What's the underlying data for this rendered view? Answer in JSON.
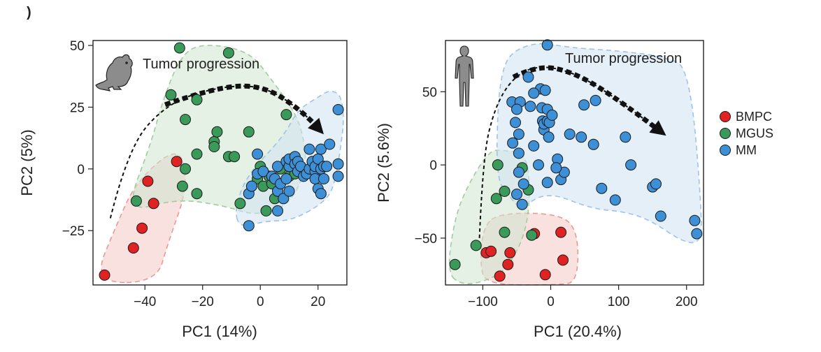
{
  "panel_marker": ")",
  "colors": {
    "BMPC": "#e02222",
    "MGUS": "#3a9a5a",
    "MM": "#3d8fd6",
    "hull_BMPC": "#f4c9c6",
    "hull_MGUS": "#cfe6cf",
    "hull_MM": "#cfe2f3",
    "hull_edge_BMPC": "#e89a95",
    "hull_edge_MGUS": "#9fcd9f",
    "hull_edge_MM": "#9cc4e6",
    "arrow": "#111111"
  },
  "icons": {
    "mouse": "mouse-icon",
    "human": "human-silhouette-icon"
  },
  "chart_data": [
    {
      "type": "scatter",
      "title": "",
      "annotation": "Tumor progression",
      "xlabel": "PC1 (14%)",
      "ylabel": "PC2 (5%)",
      "xlim": [
        -58,
        30
      ],
      "ylim": [
        -47,
        52
      ],
      "xticks": [
        -40,
        -20,
        0,
        20
      ],
      "xtick_labels": [
        "−40",
        "−20",
        "0",
        "20"
      ],
      "yticks": [
        -25,
        0,
        25,
        50
      ],
      "ytick_labels": [
        "−25",
        "0",
        "25",
        "50"
      ],
      "series": [
        {
          "name": "BMPC",
          "points": [
            [
              -54,
              -43
            ],
            [
              -44,
              -32
            ],
            [
              -41,
              -24
            ],
            [
              -39,
              -5
            ],
            [
              -37,
              -14
            ],
            [
              -29,
              3
            ]
          ]
        },
        {
          "name": "MGUS",
          "points": [
            [
              -43,
              -13
            ],
            [
              -28,
              49
            ],
            [
              -31,
              30
            ],
            [
              -26,
              20
            ],
            [
              -22,
              28
            ],
            [
              -26,
              0
            ],
            [
              -27,
              -7
            ],
            [
              -22,
              -10
            ],
            [
              -22,
              6
            ],
            [
              -16,
              11
            ],
            [
              -15,
              15
            ],
            [
              -16,
              9
            ],
            [
              -11,
              47
            ],
            [
              -11,
              5
            ],
            [
              -9,
              5
            ],
            [
              -4,
              15
            ],
            [
              -7,
              -14
            ],
            [
              -3,
              -7
            ],
            [
              -1,
              -4
            ],
            [
              0,
              1
            ],
            [
              1,
              -7
            ],
            [
              3,
              -3
            ],
            [
              2,
              -17
            ],
            [
              4,
              -6
            ],
            [
              5,
              -12
            ],
            [
              7,
              0
            ],
            [
              9,
              22
            ],
            [
              10,
              -3
            ],
            [
              12,
              -2
            ]
          ]
        },
        {
          "name": "MM",
          "points": [
            [
              -4,
              -23
            ],
            [
              -4,
              -10
            ],
            [
              -3,
              -7
            ],
            [
              -1,
              -2
            ],
            [
              -1,
              6
            ],
            [
              1,
              -1
            ],
            [
              4,
              -3
            ],
            [
              5,
              -4
            ],
            [
              6,
              -17
            ],
            [
              6,
              -9
            ],
            [
              6,
              1
            ],
            [
              7,
              -6
            ],
            [
              9,
              -4
            ],
            [
              9,
              3
            ],
            [
              8,
              -12
            ],
            [
              10,
              1
            ],
            [
              10,
              4
            ],
            [
              10,
              -9
            ],
            [
              12,
              5
            ],
            [
              12,
              2
            ],
            [
              13,
              3
            ],
            [
              13,
              -1
            ],
            [
              14,
              1
            ],
            [
              15,
              -3
            ],
            [
              16,
              -2
            ],
            [
              17,
              0
            ],
            [
              17,
              8
            ],
            [
              18,
              3
            ],
            [
              19,
              -1
            ],
            [
              19,
              1
            ],
            [
              19,
              -4
            ],
            [
              20,
              -8
            ],
            [
              21,
              -10
            ],
            [
              21,
              0
            ],
            [
              20,
              4
            ],
            [
              21,
              8
            ],
            [
              22,
              1
            ],
            [
              23,
              1
            ],
            [
              22,
              -4
            ],
            [
              24,
              10
            ],
            [
              27,
              -3
            ],
            [
              27,
              2
            ],
            [
              27,
              24
            ]
          ]
        }
      ],
      "hulls": {
        "BMPC": [
          [
            -58,
            -46
          ],
          [
            -50,
            -23
          ],
          [
            -43,
            -5
          ],
          [
            -28,
            10
          ],
          [
            -25,
            -7
          ],
          [
            -32,
            -30
          ],
          [
            -36,
            -46
          ]
        ],
        "MGUS": [
          [
            -47,
            -18
          ],
          [
            -38,
            10
          ],
          [
            -34,
            27
          ],
          [
            -28,
            45
          ],
          [
            -21,
            51
          ],
          [
            -4,
            48
          ],
          [
            4,
            36
          ],
          [
            12,
            23
          ],
          [
            15,
            13
          ],
          [
            16,
            0
          ],
          [
            10,
            -15
          ],
          [
            -2,
            -19
          ],
          [
            -12,
            -15
          ],
          [
            -29,
            -12
          ]
        ],
        "MM": [
          [
            -9,
            -17
          ],
          [
            -5,
            -3
          ],
          [
            8,
            13
          ],
          [
            13,
            24
          ],
          [
            20,
            29
          ],
          [
            24,
            32
          ],
          [
            28,
            30
          ],
          [
            29,
            20
          ],
          [
            28,
            10
          ],
          [
            26,
            -5
          ],
          [
            23,
            -13
          ],
          [
            11,
            -21
          ],
          [
            2,
            -21
          ],
          [
            -7,
            -24
          ]
        ]
      },
      "arrow": [
        [
          -52,
          -20
        ],
        [
          -46,
          8
        ],
        [
          -33,
          26
        ],
        [
          -16,
          33
        ],
        [
          1,
          34
        ],
        [
          15,
          23
        ],
        [
          22,
          14
        ]
      ]
    },
    {
      "type": "scatter",
      "title": "",
      "annotation": "Tumor progression",
      "xlabel": "PC1 (20.4%)",
      "ylabel": "PC2 (5.6%)",
      "xlim": [
        -155,
        225
      ],
      "ylim": [
        -82,
        85
      ],
      "xticks": [
        -100,
        0,
        100,
        200
      ],
      "xtick_labels": [
        "−100",
        "0",
        "100",
        "200"
      ],
      "yticks": [
        -50,
        0,
        50
      ],
      "ytick_labels": [
        "−50",
        "0",
        "50"
      ],
      "legend": {
        "position": "right",
        "entries": [
          "BMPC",
          "MGUS",
          "MM"
        ]
      },
      "series": [
        {
          "name": "BMPC",
          "points": [
            [
              -95,
              -60
            ],
            [
              -88,
              -59
            ],
            [
              -60,
              -60
            ],
            [
              -63,
              -68
            ],
            [
              -75,
              -76
            ],
            [
              -8,
              -75
            ],
            [
              15,
              -46
            ],
            [
              18,
              -65
            ],
            [
              -24,
              -47
            ]
          ]
        },
        {
          "name": "MGUS",
          "points": [
            [
              -141,
              -68
            ],
            [
              -110,
              -55
            ],
            [
              -80,
              -23
            ],
            [
              -78,
              0
            ],
            [
              -68,
              -18
            ],
            [
              -68,
              -46
            ],
            [
              -42,
              -2
            ],
            [
              -33,
              -17
            ],
            [
              -28,
              -48
            ]
          ]
        },
        {
          "name": "MM",
          "points": [
            [
              -5,
              82
            ],
            [
              -57,
              43
            ],
            [
              -45,
              43
            ],
            [
              -33,
              60
            ],
            [
              -15,
              52
            ],
            [
              -25,
              49
            ],
            [
              -8,
              51
            ],
            [
              -13,
              39
            ],
            [
              -5,
              38
            ],
            [
              -10,
              24
            ],
            [
              -12,
              30
            ],
            [
              -30,
              40
            ],
            [
              -50,
              38
            ],
            [
              -52,
              29
            ],
            [
              -47,
              21
            ],
            [
              -56,
              15
            ],
            [
              -47,
              8
            ],
            [
              -25,
              13
            ],
            [
              -18,
              0
            ],
            [
              -47,
              -5
            ],
            [
              -40,
              -13
            ],
            [
              -42,
              -27
            ],
            [
              -50,
              -20
            ],
            [
              -10,
              28
            ],
            [
              -5,
              30
            ],
            [
              -2,
              29
            ],
            [
              2,
              34
            ],
            [
              -3,
              19
            ],
            [
              10,
              4
            ],
            [
              15,
              -10
            ],
            [
              20,
              -5
            ],
            [
              28,
              21
            ],
            [
              45,
              19
            ],
            [
              49,
              41
            ],
            [
              63,
              14
            ],
            [
              66,
              44
            ],
            [
              75,
              -16
            ],
            [
              95,
              -24
            ],
            [
              110,
              19
            ],
            [
              118,
              0
            ],
            [
              150,
              -15
            ],
            [
              155,
              -13
            ],
            [
              162,
              -35
            ],
            [
              212,
              -38
            ],
            [
              215,
              -47
            ],
            [
              -5,
              -12
            ],
            [
              8,
              -2
            ]
          ]
        }
      ],
      "hulls": {
        "BMPC": [
          [
            -100,
            -44
          ],
          [
            -104,
            -67
          ],
          [
            -96,
            -82
          ],
          [
            10,
            -82
          ],
          [
            40,
            -80
          ],
          [
            40,
            -44
          ],
          [
            10,
            -33
          ],
          [
            -80,
            -33
          ]
        ],
        "MGUS": [
          [
            -153,
            -74
          ],
          [
            -141,
            -35
          ],
          [
            -120,
            -12
          ],
          [
            -90,
            10
          ],
          [
            -70,
            10
          ],
          [
            -37,
            8
          ],
          [
            -30,
            -15
          ],
          [
            -36,
            -46
          ],
          [
            -65,
            -72
          ],
          [
            -100,
            -80
          ],
          [
            -130,
            -82
          ]
        ],
        "MM": [
          [
            -80,
            -10
          ],
          [
            -78,
            42
          ],
          [
            -70,
            67
          ],
          [
            -55,
            78
          ],
          [
            -18,
            84
          ],
          [
            30,
            80
          ],
          [
            100,
            78
          ],
          [
            168,
            74
          ],
          [
            205,
            66
          ],
          [
            224,
            -40
          ],
          [
            218,
            -54
          ],
          [
            192,
            -52
          ],
          [
            148,
            -38
          ],
          [
            110,
            -32
          ],
          [
            60,
            -30
          ],
          [
            -5,
            -18
          ],
          [
            -45,
            -30
          ],
          [
            -60,
            -22
          ]
        ]
      },
      "arrow": [
        [
          -105,
          -50
        ],
        [
          -100,
          5
        ],
        [
          -82,
          40
        ],
        [
          -55,
          60
        ],
        [
          -20,
          68
        ],
        [
          30,
          64
        ],
        [
          90,
          48
        ],
        [
          170,
          20
        ]
      ]
    }
  ]
}
